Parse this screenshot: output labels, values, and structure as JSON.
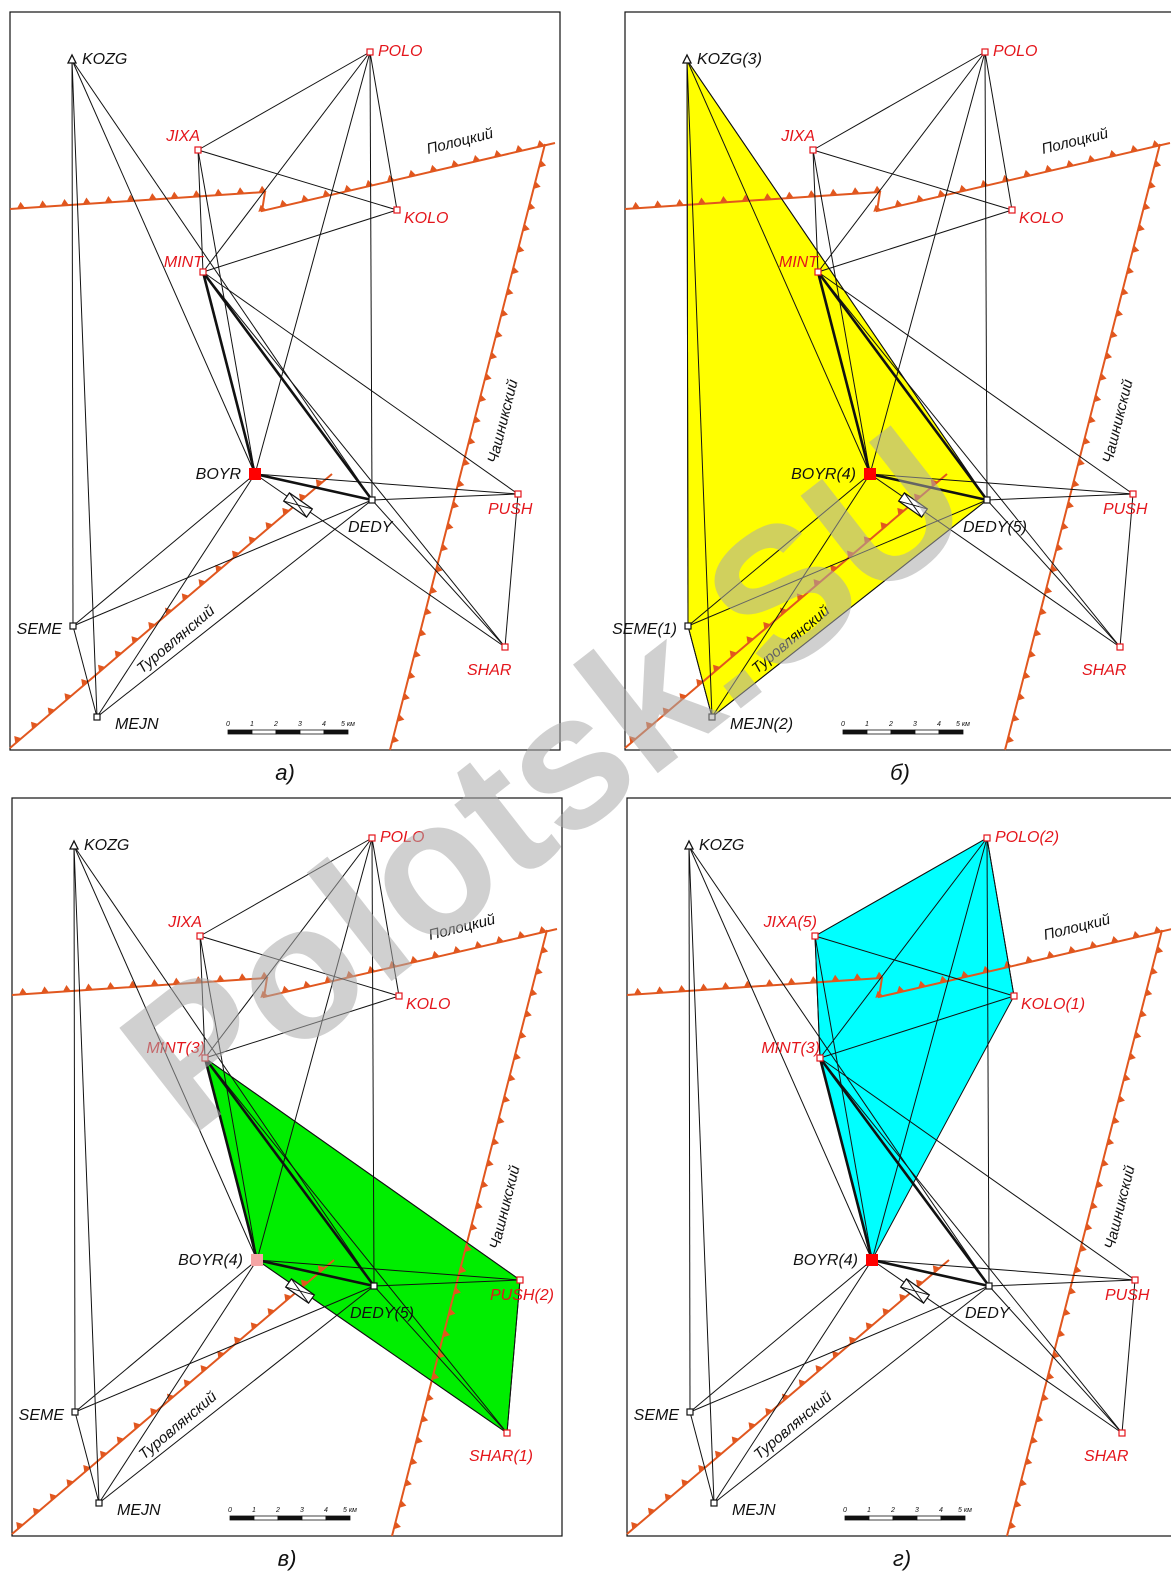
{
  "panels": [
    {
      "caption": "а)",
      "labels": {
        "KOZG": "KOZG",
        "POLO": "POLO",
        "JIXA": "JIXA",
        "KOLO": "KOLO",
        "MINT": "MINT",
        "BOYR": "BOYR",
        "DEDY": "DEDY",
        "PUSH": "PUSH",
        "SEME": "SEME",
        "SHAR": "SHAR",
        "MEJN": "MEJN"
      },
      "polygon": null,
      "polygon_color": null
    },
    {
      "caption": "б)",
      "labels": {
        "KOZG": "KOZG(3)",
        "POLO": "POLO",
        "JIXA": "JIXA",
        "KOLO": "KOLO",
        "MINT": "MINT",
        "BOYR": "BOYR(4)",
        "DEDY": "DEDY(5)",
        "PUSH": "PUSH",
        "SEME": "SEME(1)",
        "SHAR": "SHAR",
        "MEJN": "MEJN(2)"
      },
      "polygon": [
        "KOZG",
        "DEDY",
        "MEJN",
        "SEME"
      ],
      "polygon_color": "#ffff00"
    },
    {
      "caption": "в)",
      "labels": {
        "KOZG": "KOZG",
        "POLO": "POLO",
        "JIXA": "JIXA",
        "KOLO": "KOLO",
        "MINT": "MINT(3)",
        "BOYR": "BOYR(4)",
        "DEDY": "DEDY(5)",
        "PUSH": "PUSH(2)",
        "SEME": "SEME",
        "SHAR": "SHAR(1)",
        "MEJN": "MEJN"
      },
      "polygon": [
        "MINT",
        "PUSH",
        "SHAR",
        "BOYR"
      ],
      "polygon_color": "#00ee00"
    },
    {
      "caption": "г)",
      "labels": {
        "KOZG": "KOZG",
        "POLO": "POLO(2)",
        "JIXA": "JIXA(5)",
        "KOLO": "KOLO(1)",
        "MINT": "MINT(3)",
        "BOYR": "BOYR(4)",
        "DEDY": "DEDY",
        "PUSH": "PUSH",
        "SEME": "SEME",
        "SHAR": "SHAR",
        "MEJN": "MEJN"
      },
      "polygon": [
        "JIXA",
        "POLO",
        "KOLO",
        "BOYR",
        "MINT"
      ],
      "polygon_color": "#00ffff"
    }
  ],
  "faults": {
    "polotsky": "Полоцкий",
    "chashniksky": "Чашникский",
    "turovlyansky": "Туровлянский"
  },
  "scale": {
    "ticks": [
      "0",
      "1",
      "2",
      "3",
      "4",
      "5 км"
    ]
  },
  "watermark": "Polotsk.SU",
  "colors": {
    "fault": "#e1571f",
    "red_station": "#e4151b",
    "frame": "#111111"
  }
}
